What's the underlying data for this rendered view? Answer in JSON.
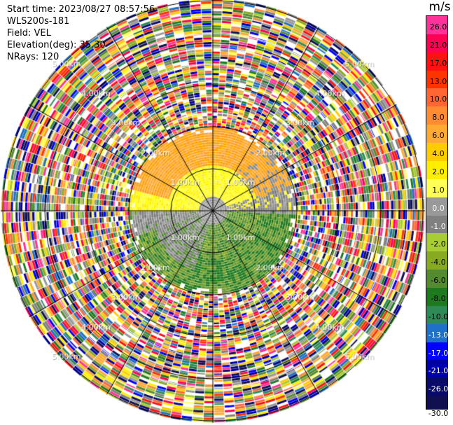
{
  "header": {
    "start_time": "Start time: 2023/08/27 08:57:56",
    "instrument": "WLS200s-181",
    "field": "Field: VEL",
    "elevation": "Elevation(deg): 35.30",
    "nrays": "NRays: 120"
  },
  "chart_data": {
    "type": "heatmap",
    "projection": "polar PPI",
    "field": "VEL",
    "units": "m/s",
    "rays": 120,
    "range_ring_labels": [
      "1.00km",
      "2.00km",
      "3.00km",
      "4.00km",
      "5.00km"
    ],
    "colorbar": {
      "title": "m/s",
      "ticks": [
        "26.0",
        "21.0",
        "17.0",
        "13.0",
        "10.0",
        "8.0",
        "6.0",
        "4.0",
        "2.0",
        "1.0",
        "0.0",
        "-1.0",
        "-2.0",
        "-4.0",
        "-6.0",
        "-8.0",
        "-10.0",
        "-13.0",
        "-17.0",
        "-21.0",
        "-26.0",
        "-30.0"
      ],
      "colors": [
        "#ff3399",
        "#ff0055",
        "#ff1111",
        "#ff3300",
        "#ff6633",
        "#ff8c33",
        "#ffaa33",
        "#ffcc00",
        "#ffee00",
        "#ffff55",
        "#999999",
        "#808080",
        "#a8cc33",
        "#88aa22",
        "#558b2f",
        "#1e7a1e",
        "#2e8b57",
        "#1e70c8",
        "#0000ff",
        "#0000aa",
        "#0a0a6a",
        "#101050"
      ]
    },
    "near_field": {
      "north": "orange",
      "north_inner": "yellow",
      "center": "gray",
      "south": "green"
    }
  }
}
